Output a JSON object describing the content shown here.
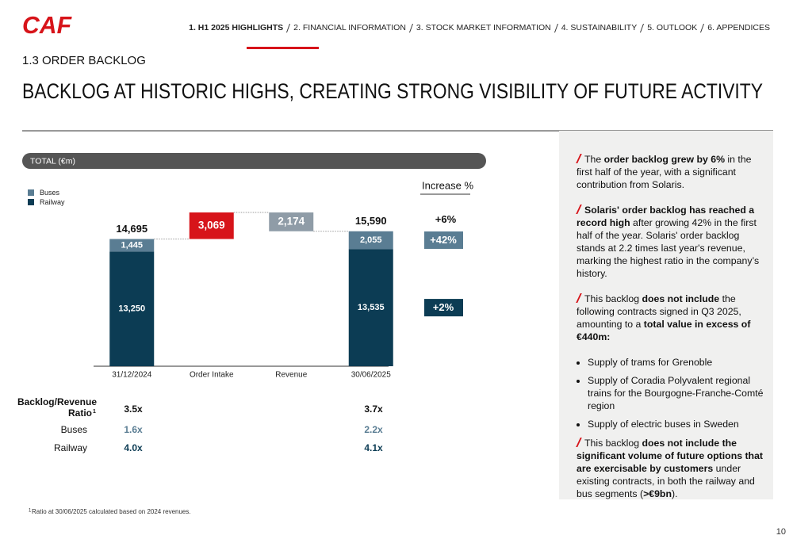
{
  "header": {
    "logo": "CAF",
    "nav": [
      "1. H1 2025 HIGHLIGHTS",
      "2. FINANCIAL INFORMATION",
      "3. STOCK MARKET INFORMATION",
      "4. SUSTAINABILITY",
      "5. OUTLOOK",
      "6. APPENDICES"
    ],
    "section": "1.3 ORDER BACKLOG",
    "title": "BACKLOG AT HISTORIC HIGHS, CREATING STRONG VISIBILITY OF FUTURE ACTIVITY"
  },
  "chart_data": {
    "type": "waterfall",
    "label": "TOTAL (€m)",
    "categories": [
      "31/12/2024",
      "Order Intake",
      "Revenue",
      "30/06/2025"
    ],
    "series": [
      {
        "name": "Buses",
        "color": "#5a7d93",
        "values": [
          1445,
          null,
          null,
          2055
        ],
        "value_labels": [
          "1,445",
          null,
          null,
          "2,055"
        ]
      },
      {
        "name": "Railway",
        "color": "#0c3c54",
        "values": [
          13250,
          null,
          null,
          13535
        ],
        "value_labels": [
          "13,250",
          null,
          null,
          "13,535"
        ]
      }
    ],
    "totals": {
      "values": [
        14695,
        null,
        null,
        15590
      ],
      "value_labels": [
        "14,695",
        null,
        null,
        "15,590"
      ]
    },
    "changes": {
      "values": [
        null,
        3069,
        -2174,
        null
      ],
      "value_labels": [
        null,
        "3,069",
        "2,174",
        null
      ],
      "colors": [
        null,
        "#d7141a",
        "#8f9ca7",
        null
      ]
    },
    "increase": {
      "title": "Increase %",
      "values": [
        6,
        42,
        2
      ],
      "value_labels": [
        "+6%",
        "+42%",
        "+2%"
      ]
    }
  },
  "ratio_table": {
    "title_lines": [
      "Backlog/Revenue",
      "Ratio"
    ],
    "note_mark": "1",
    "total": [
      "3.5x",
      "3.7x"
    ],
    "rows": [
      {
        "label": "Buses",
        "values": [
          "1.6x",
          "2.2x"
        ]
      },
      {
        "label": "Railway",
        "values": [
          "4.0x",
          "4.1x"
        ]
      }
    ]
  },
  "footnote": {
    "note_mark": "1",
    "text": "Ratio at 30/06/2025 calculated based on 2024 revenues."
  },
  "panel": {
    "blocks": [
      {
        "kind": "para",
        "runs": [
          [
            "The ",
            false
          ],
          [
            "order backlog grew by 6%",
            true
          ],
          [
            " in the first half of the year, with a significant contribution from Solaris.",
            false
          ]
        ]
      },
      {
        "kind": "para",
        "runs": [
          [
            "Solaris' order backlog has reached a record high",
            true
          ],
          [
            " after growing 42% in the first half of the year. Solaris' order backlog stands at 2.2 times last year's revenue, marking the highest ratio in the company’s history.",
            false
          ]
        ]
      },
      {
        "kind": "para",
        "runs": [
          [
            "This backlog ",
            false
          ],
          [
            "does not include",
            true
          ],
          [
            " the following contracts signed in Q3 2025, amounting to a ",
            false
          ],
          [
            "total value in excess of €440m:",
            true
          ]
        ]
      },
      {
        "kind": "bullet",
        "runs": [
          [
            "Supply of trams for Grenoble",
            false
          ]
        ]
      },
      {
        "kind": "bullet",
        "runs": [
          [
            "Supply of Coradia Polyvalent regional trains for the Bourgogne-Franche-Comté region",
            false
          ]
        ]
      },
      {
        "kind": "bullet",
        "runs": [
          [
            "Supply of electric buses in Sweden",
            false
          ]
        ]
      },
      {
        "kind": "para",
        "runs": [
          [
            "This backlog ",
            false
          ],
          [
            "does not include the significant volume of future options that are exercisable by customers",
            true
          ],
          [
            " under existing contracts, in both the railway and bus segments (",
            false
          ],
          [
            ">€9bn",
            true
          ],
          [
            ").",
            false
          ]
        ]
      }
    ]
  },
  "page_number": "10"
}
